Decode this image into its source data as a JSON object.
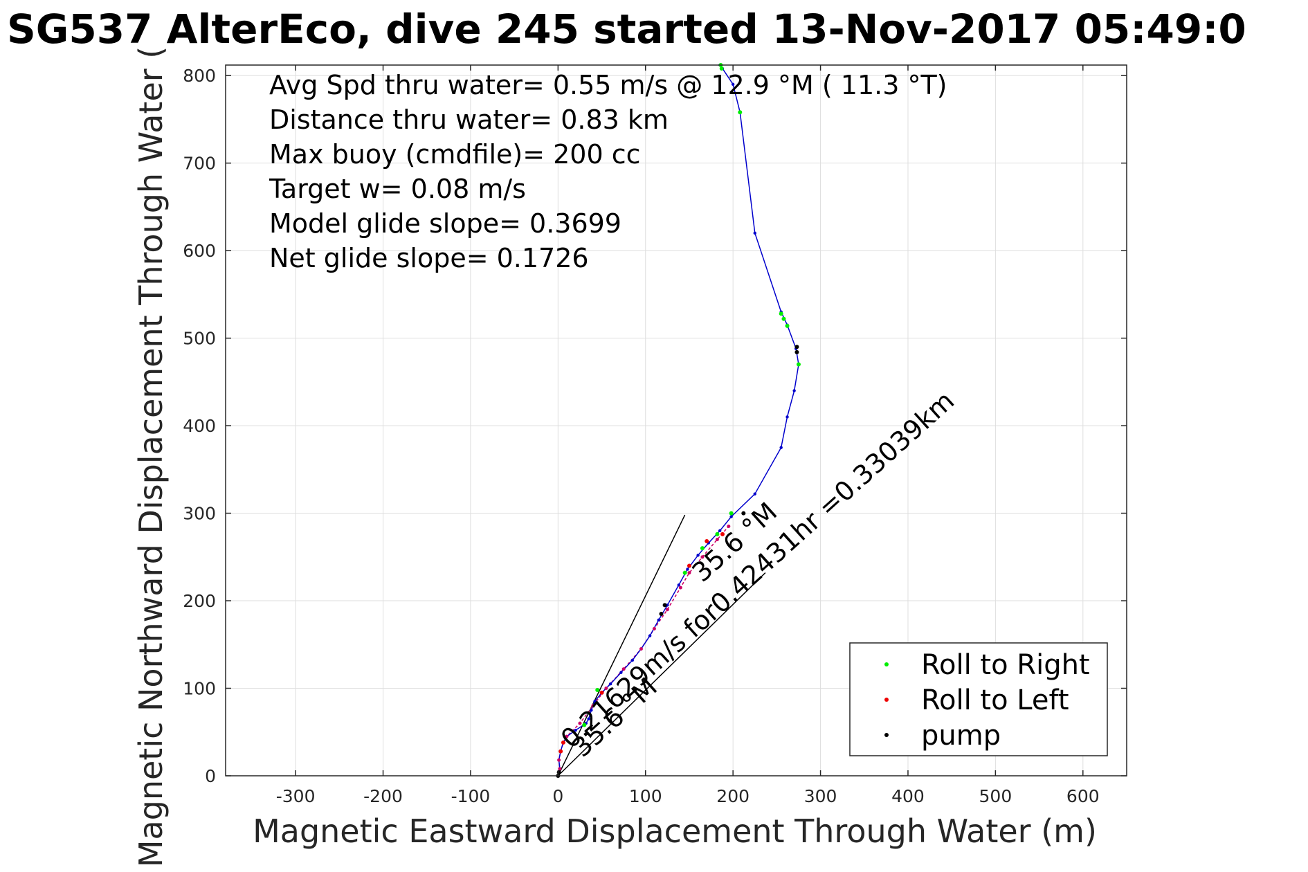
{
  "chart_data": {
    "type": "scatter",
    "title": "SG537 AlterEco, dive 245 started 13-Nov-2017 05:49:0",
    "xlabel": "Magnetic Eastward Displacement Through Water (m)",
    "ylabel": "Magnetic Northward Displacement Through Water (",
    "xlim": [
      -380,
      650
    ],
    "ylim": [
      0,
      812
    ],
    "xticks": [
      -300,
      -200,
      -100,
      0,
      100,
      200,
      300,
      400,
      500,
      600
    ],
    "yticks": [
      0,
      100,
      200,
      300,
      400,
      500,
      600,
      700,
      800
    ],
    "grid": true,
    "annotations": [
      "Avg Spd thru water=  0.55 m/s @  12.9 °M ( 11.3 °T)",
      "Distance thru water=  0.83 km",
      "Max buoy (cmdfile)= 200 cc",
      "Target w= 0.08 m/s",
      "Model glide slope= 0.3699",
      "Net glide slope= 0.1726"
    ],
    "rotated_labels": [
      {
        "text": "0.21629m/s for0.42431hr =0.33039km",
        "x": 15,
        "y": 30,
        "angle_deg": 42,
        "color": "#000000"
      },
      {
        "text": "35.6 °M",
        "x": 28,
        "y": 20,
        "angle_deg": 42,
        "color": "#000000"
      },
      {
        "text": "35.6 °M",
        "x": 165,
        "y": 220,
        "angle_deg": 42,
        "color": "#000000"
      }
    ],
    "wedge": {
      "origin": [
        0,
        0
      ],
      "ends": [
        [
          145,
          298
        ],
        [
          237,
          232
        ]
      ]
    },
    "track_color": "#0000cc",
    "track": [
      [
        0,
        0
      ],
      [
        2,
        8
      ],
      [
        1,
        18
      ],
      [
        3,
        28
      ],
      [
        6,
        38
      ],
      [
        10,
        45
      ],
      [
        20,
        52
      ],
      [
        32,
        60
      ],
      [
        35,
        65
      ],
      [
        38,
        75
      ],
      [
        42,
        85
      ],
      [
        50,
        95
      ],
      [
        60,
        105
      ],
      [
        72,
        118
      ],
      [
        85,
        132
      ],
      [
        95,
        145
      ],
      [
        105,
        160
      ],
      [
        115,
        178
      ],
      [
        125,
        195
      ],
      [
        138,
        218
      ],
      [
        148,
        236
      ],
      [
        160,
        252
      ],
      [
        172,
        266
      ],
      [
        185,
        280
      ],
      [
        198,
        296
      ],
      [
        225,
        322
      ],
      [
        255,
        375
      ],
      [
        262,
        410
      ],
      [
        270,
        440
      ],
      [
        275,
        470
      ],
      [
        272,
        488
      ],
      [
        262,
        515
      ],
      [
        255,
        530
      ],
      [
        225,
        620
      ],
      [
        208,
        758
      ],
      [
        200,
        790
      ],
      [
        188,
        808
      ],
      [
        185,
        812
      ]
    ],
    "dive_color": "#cc0066",
    "dive_path": [
      [
        0,
        0
      ],
      [
        2,
        8
      ],
      [
        1,
        18
      ],
      [
        3,
        28
      ],
      [
        6,
        38
      ],
      [
        10,
        45
      ],
      [
        25,
        60
      ],
      [
        40,
        80
      ],
      [
        55,
        100
      ],
      [
        75,
        122
      ],
      [
        95,
        145
      ],
      [
        110,
        168
      ],
      [
        125,
        190
      ],
      [
        140,
        215
      ],
      [
        150,
        232
      ],
      [
        165,
        250
      ],
      [
        182,
        270
      ],
      [
        195,
        285
      ]
    ],
    "series": [
      {
        "name": "Roll to Right",
        "color": "#00ee00",
        "points": [
          [
            30,
            58
          ],
          [
            45,
            98
          ],
          [
            145,
            232
          ],
          [
            165,
            260
          ],
          [
            182,
            276
          ],
          [
            198,
            300
          ],
          [
            255,
            528
          ],
          [
            258,
            522
          ],
          [
            262,
            514
          ],
          [
            275,
            470
          ],
          [
            208,
            758
          ],
          [
            186,
            812
          ],
          [
            187,
            808
          ]
        ]
      },
      {
        "name": "Roll to Left",
        "color": "#ee0000",
        "points": [
          [
            3,
            28
          ],
          [
            6,
            38
          ],
          [
            50,
            95
          ],
          [
            150,
            240
          ],
          [
            170,
            268
          ],
          [
            188,
            276
          ]
        ]
      },
      {
        "name": "pump",
        "color": "#000000",
        "points": [
          [
            0,
            0
          ],
          [
            1,
            4
          ],
          [
            118,
            185
          ],
          [
            122,
            195
          ],
          [
            273,
            484
          ],
          [
            273,
            490
          ],
          [
            212,
            300
          ]
        ]
      }
    ],
    "legend": {
      "position": "bottom-right",
      "entries": [
        "Roll to Right",
        "Roll to Left",
        "pump"
      ]
    }
  }
}
